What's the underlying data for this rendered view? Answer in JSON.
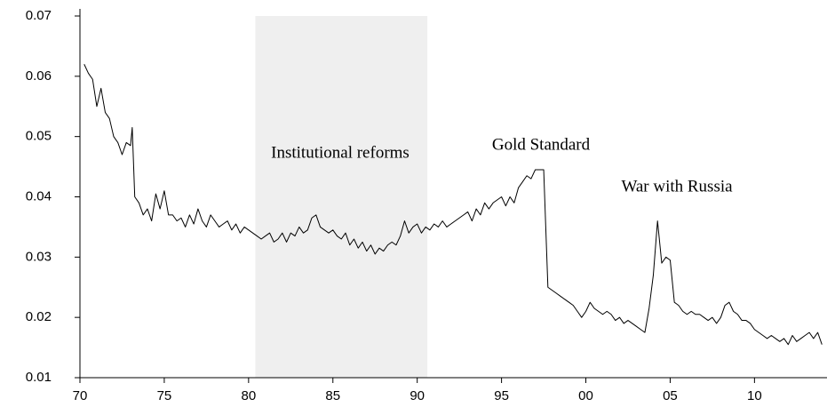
{
  "chart_data": {
    "type": "line",
    "color": "#000000",
    "shade_color": "#efefef",
    "shaded_region": [
      1880.4,
      1890.6
    ],
    "annotations": [
      "Institutional reforms",
      "Gold Standard",
      "War with Russia"
    ],
    "xlim": [
      1870,
      1914.3
    ],
    "xticks": [
      {
        "value": 1870,
        "label": "70"
      },
      {
        "value": 1875,
        "label": "75"
      },
      {
        "value": 1880,
        "label": "80"
      },
      {
        "value": 1885,
        "label": "85"
      },
      {
        "value": 1890,
        "label": "90"
      },
      {
        "value": 1895,
        "label": "95"
      },
      {
        "value": 1900,
        "label": "00"
      },
      {
        "value": 1905,
        "label": "05"
      },
      {
        "value": 1910,
        "label": "10"
      }
    ],
    "ylim": [
      0.01,
      0.07
    ],
    "yticks": [
      0.01,
      0.02,
      0.03,
      0.04,
      0.05,
      0.06,
      0.07
    ],
    "x": [
      1870.25,
      1870.5,
      1870.75,
      1871,
      1871.25,
      1871.5,
      1871.75,
      1872,
      1872.25,
      1872.5,
      1872.75,
      1873,
      1873.1,
      1873.25,
      1873.5,
      1873.75,
      1874,
      1874.25,
      1874.5,
      1874.75,
      1875,
      1875.25,
      1875.5,
      1875.75,
      1876,
      1876.25,
      1876.5,
      1876.75,
      1877,
      1877.25,
      1877.5,
      1877.75,
      1878,
      1878.25,
      1878.5,
      1878.75,
      1879,
      1879.25,
      1879.5,
      1879.75,
      1880,
      1880.25,
      1880.5,
      1880.75,
      1881,
      1881.25,
      1881.5,
      1881.75,
      1882,
      1882.25,
      1882.5,
      1882.75,
      1883,
      1883.25,
      1883.5,
      1883.75,
      1884,
      1884.25,
      1884.5,
      1884.75,
      1885,
      1885.25,
      1885.5,
      1885.75,
      1886,
      1886.25,
      1886.5,
      1886.75,
      1887,
      1887.25,
      1887.5,
      1887.75,
      1888,
      1888.25,
      1888.5,
      1888.75,
      1889,
      1889.25,
      1889.5,
      1889.75,
      1890,
      1890.25,
      1890.5,
      1890.75,
      1891,
      1891.25,
      1891.5,
      1891.75,
      1892,
      1892.25,
      1892.5,
      1892.75,
      1893,
      1893.25,
      1893.5,
      1893.75,
      1894,
      1894.25,
      1894.5,
      1894.75,
      1895,
      1895.25,
      1895.5,
      1895.75,
      1896,
      1896.25,
      1896.5,
      1896.75,
      1897,
      1897.25,
      1897.5,
      1897.75,
      1898,
      1898.25,
      1898.5,
      1898.75,
      1899,
      1899.25,
      1899.5,
      1899.75,
      1900,
      1900.25,
      1900.5,
      1900.75,
      1901,
      1901.25,
      1901.5,
      1901.75,
      1902,
      1902.25,
      1902.5,
      1902.75,
      1903,
      1903.25,
      1903.5,
      1903.75,
      1904,
      1904.25,
      1904.5,
      1904.75,
      1905,
      1905.25,
      1905.5,
      1905.75,
      1906,
      1906.25,
      1906.5,
      1906.75,
      1907,
      1907.25,
      1907.5,
      1907.75,
      1908,
      1908.25,
      1908.5,
      1908.75,
      1909,
      1909.25,
      1909.5,
      1909.75,
      1910,
      1910.25,
      1910.5,
      1910.75,
      1911,
      1911.25,
      1911.5,
      1911.75,
      1912,
      1912.25,
      1912.5,
      1912.75,
      1913,
      1913.25,
      1913.5,
      1913.75,
      1914
    ],
    "values": [
      0.062,
      0.0605,
      0.0595,
      0.055,
      0.058,
      0.054,
      0.053,
      0.05,
      0.049,
      0.047,
      0.049,
      0.0485,
      0.0515,
      0.04,
      0.039,
      0.037,
      0.038,
      0.036,
      0.0405,
      0.038,
      0.041,
      0.037,
      0.037,
      0.036,
      0.0365,
      0.035,
      0.037,
      0.0355,
      0.038,
      0.036,
      0.035,
      0.037,
      0.036,
      0.035,
      0.0355,
      0.036,
      0.0345,
      0.0355,
      0.034,
      0.035,
      0.0345,
      0.034,
      0.0335,
      0.033,
      0.0335,
      0.034,
      0.0325,
      0.033,
      0.034,
      0.0325,
      0.034,
      0.0335,
      0.035,
      0.034,
      0.0345,
      0.0365,
      0.037,
      0.035,
      0.0345,
      0.034,
      0.0345,
      0.0335,
      0.033,
      0.034,
      0.032,
      0.033,
      0.0315,
      0.0325,
      0.031,
      0.032,
      0.0305,
      0.0315,
      0.031,
      0.032,
      0.0325,
      0.032,
      0.0335,
      0.036,
      0.034,
      0.035,
      0.0355,
      0.034,
      0.035,
      0.0345,
      0.0355,
      0.035,
      0.036,
      0.035,
      0.0355,
      0.036,
      0.0365,
      0.037,
      0.0375,
      0.036,
      0.038,
      0.037,
      0.039,
      0.038,
      0.039,
      0.0395,
      0.04,
      0.0385,
      0.04,
      0.039,
      0.0415,
      0.0425,
      0.0435,
      0.043,
      0.0445,
      0.0445,
      0.0445,
      0.025,
      0.0245,
      0.024,
      0.0235,
      0.023,
      0.0225,
      0.022,
      0.021,
      0.02,
      0.021,
      0.0225,
      0.0215,
      0.021,
      0.0205,
      0.021,
      0.0205,
      0.0195,
      0.02,
      0.019,
      0.0195,
      0.019,
      0.0185,
      0.018,
      0.0175,
      0.0215,
      0.027,
      0.036,
      0.029,
      0.03,
      0.0295,
      0.0225,
      0.022,
      0.021,
      0.0205,
      0.021,
      0.0205,
      0.0205,
      0.02,
      0.0195,
      0.02,
      0.019,
      0.02,
      0.022,
      0.0225,
      0.021,
      0.0205,
      0.0195,
      0.0195,
      0.019,
      0.018,
      0.0175,
      0.017,
      0.0165,
      0.017,
      0.0165,
      0.016,
      0.0165,
      0.0155,
      0.017,
      0.016,
      0.0165,
      0.017,
      0.0175,
      0.0165,
      0.0175,
      0.0155
    ]
  }
}
